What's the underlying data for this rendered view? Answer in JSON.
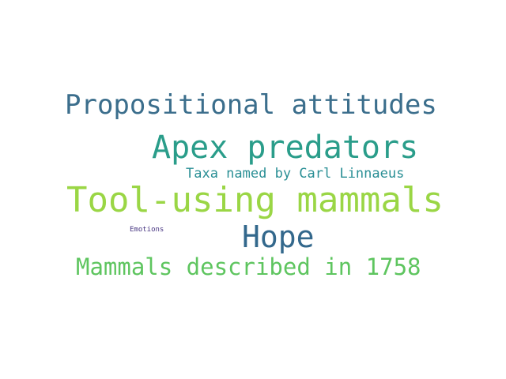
{
  "words": {
    "propositional_attitudes": {
      "text": "Propositional attitudes",
      "color": "#3b6e8c"
    },
    "apex_predators": {
      "text": "Apex predators",
      "color": "#2a9d8a"
    },
    "taxa_named": {
      "text": "Taxa named by Carl Linnaeus",
      "color": "#2a8f95"
    },
    "tool_using": {
      "text": "Tool-using mammals",
      "color": "#9ad645"
    },
    "hope": {
      "text": "Hope",
      "color": "#33688c"
    },
    "emotions": {
      "text": "Emotions",
      "color": "#463480"
    },
    "mammals_1758": {
      "text": "Mammals described in 1758",
      "color": "#5ec55f"
    }
  }
}
